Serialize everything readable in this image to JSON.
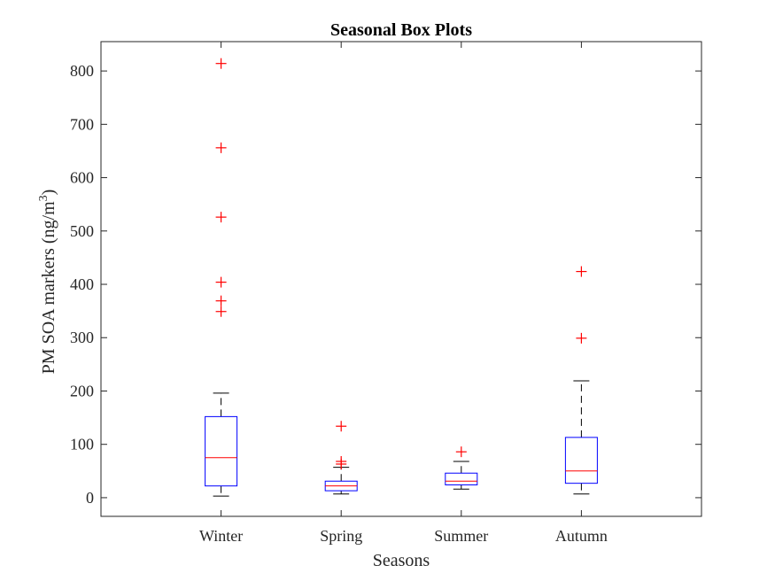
{
  "chart_data": {
    "type": "box",
    "title": "Seasonal Box Plots",
    "xlabel": "Seasons",
    "ylabel": {
      "text": "PM SOA markers (ng/m",
      "superscript": "3",
      "suffix": ")"
    },
    "ylim": [
      -35,
      855
    ],
    "yticks": [
      0,
      100,
      200,
      300,
      400,
      500,
      600,
      700,
      800
    ],
    "grid": false,
    "colors": {
      "box": "#0000ff",
      "median": "#ff0000",
      "whisker": "#000000",
      "outlier": "#ff0000",
      "axis": "#262626"
    },
    "categories": [
      "Winter",
      "Spring",
      "Summer",
      "Autumn"
    ],
    "boxes": [
      {
        "category": "Winter",
        "whisker_low": 3,
        "q1": 22,
        "median": 75,
        "q3": 152,
        "whisker_high": 196,
        "outliers": [
          814,
          656,
          526,
          404,
          369,
          349
        ]
      },
      {
        "category": "Spring",
        "whisker_low": 7,
        "q1": 13,
        "median": 22,
        "q3": 31,
        "whisker_high": 57,
        "outliers": [
          134,
          68,
          63
        ]
      },
      {
        "category": "Summer",
        "whisker_low": 16,
        "q1": 24,
        "median": 31,
        "q3": 46,
        "whisker_high": 68,
        "outliers": [
          86
        ]
      },
      {
        "category": "Autumn",
        "whisker_low": 7,
        "q1": 27,
        "median": 50,
        "q3": 113,
        "whisker_high": 219,
        "outliers": [
          424,
          299
        ]
      }
    ]
  }
}
